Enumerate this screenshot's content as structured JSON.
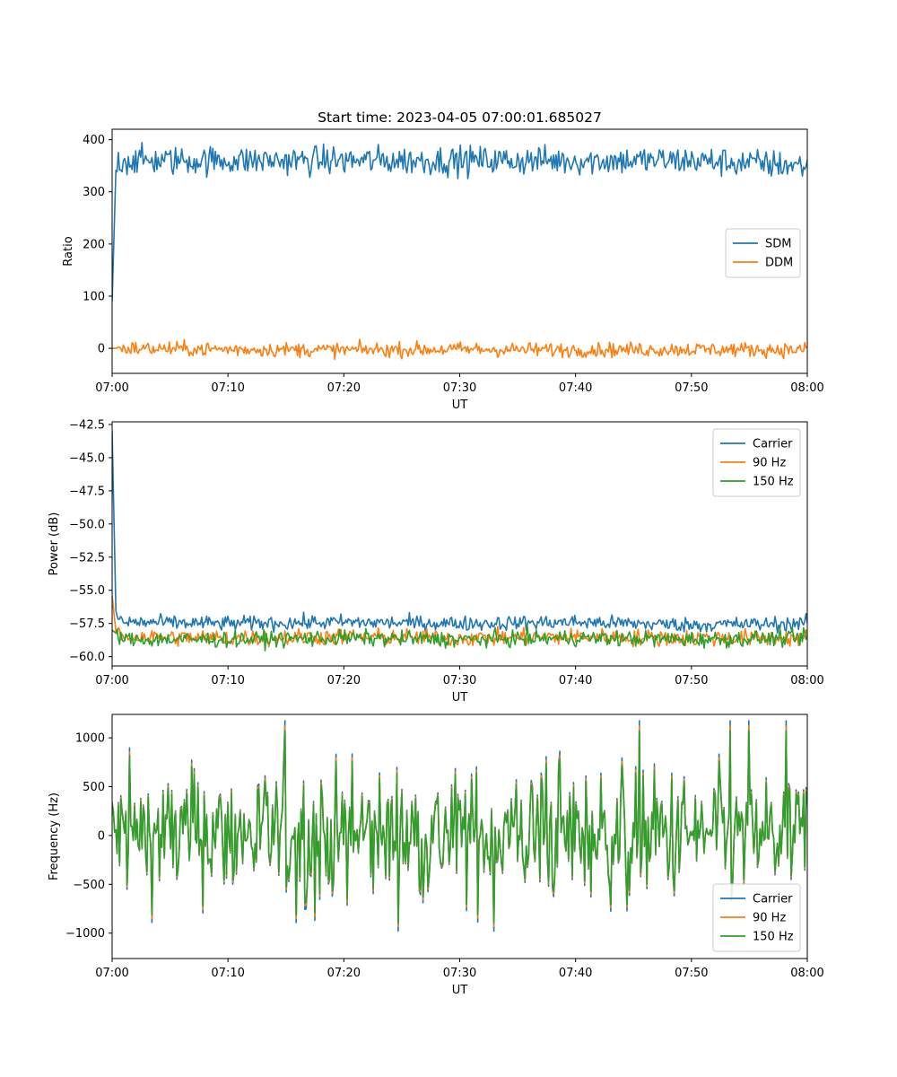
{
  "figure_title": "Start time: 2023-04-05 07:00:01.685027",
  "colors": {
    "blue": "#1f77b4",
    "orange": "#ff7f0e",
    "green": "#2ca02c"
  },
  "chart_data": [
    {
      "type": "line",
      "title": "Start time: 2023-04-05 07:00:01.685027",
      "xlabel": "UT",
      "ylabel": "Ratio",
      "xlim": [
        "07:00",
        "08:00"
      ],
      "ylim": [
        -48,
        420
      ],
      "xticks": [
        "07:00",
        "07:10",
        "07:20",
        "07:30",
        "07:40",
        "07:50",
        "08:00"
      ],
      "yticks": [
        0,
        100,
        200,
        300,
        400
      ],
      "ytick_labels": [
        "0",
        "100",
        "200",
        "300",
        "400"
      ],
      "grid": false,
      "legend": "center-right",
      "series": [
        {
          "name": "SDM",
          "color": "#1f77b4",
          "profile": "ratio_sdm",
          "x": [
            "07:00",
            "07:00:20",
            "07:00:40",
            "07:10",
            "07:20",
            "07:30",
            "07:40",
            "07:50",
            "08:00"
          ],
          "y": [
            90,
            350,
            360,
            360,
            360,
            360,
            360,
            360,
            350
          ]
        },
        {
          "name": "DDM",
          "color": "#ff7f0e",
          "profile": "ratio_ddm",
          "x": [
            "07:00",
            "07:10",
            "07:20",
            "07:30",
            "07:40",
            "07:50",
            "08:00"
          ],
          "y": [
            0,
            -2,
            -3,
            -2,
            -3,
            -2,
            -3
          ]
        }
      ]
    },
    {
      "type": "line",
      "title": "",
      "xlabel": "UT",
      "ylabel": "Power (dB)",
      "xlim": [
        "07:00",
        "08:00"
      ],
      "ylim": [
        -60.7,
        -42.3
      ],
      "xticks": [
        "07:00",
        "07:10",
        "07:20",
        "07:30",
        "07:40",
        "07:50",
        "08:00"
      ],
      "yticks": [
        -60.0,
        -57.5,
        -55.0,
        -52.5,
        -50.0,
        -47.5,
        -45.0,
        -42.5
      ],
      "ytick_labels": [
        "−60.0",
        "−57.5",
        "−55.0",
        "−52.5",
        "−50.0",
        "−47.5",
        "−45.0",
        "−42.5"
      ],
      "grid": false,
      "legend": "top-right",
      "series": [
        {
          "name": "Carrier",
          "color": "#1f77b4",
          "profile": "power_carrier",
          "x": [
            "07:00",
            "07:00:20",
            "07:01",
            "07:10",
            "07:20",
            "07:30",
            "07:40",
            "07:50",
            "08:00"
          ],
          "y": [
            -43.0,
            -57.0,
            -57.4,
            -57.5,
            -57.4,
            -57.5,
            -57.4,
            -57.6,
            -57.5
          ]
        },
        {
          "name": "90 Hz",
          "color": "#ff7f0e",
          "profile": "power_90",
          "x": [
            "07:00",
            "07:00:20",
            "07:01",
            "07:10",
            "07:20",
            "07:30",
            "07:40",
            "07:50",
            "08:00"
          ],
          "y": [
            -55.4,
            -58.2,
            -58.5,
            -58.6,
            -58.5,
            -58.6,
            -58.5,
            -58.6,
            -58.6
          ]
        },
        {
          "name": "150 Hz",
          "color": "#2ca02c",
          "profile": "power_150",
          "x": [
            "07:00",
            "07:01",
            "07:10",
            "07:20",
            "07:30",
            "07:40",
            "07:50",
            "08:00"
          ],
          "y": [
            -58.0,
            -58.7,
            -58.7,
            -58.6,
            -58.7,
            -58.6,
            -58.7,
            -58.6
          ]
        }
      ]
    },
    {
      "type": "line",
      "title": "",
      "xlabel": "UT",
      "ylabel": "Frequency (Hz)",
      "xlim": [
        "07:00",
        "08:00"
      ],
      "ylim": [
        -1260,
        1240
      ],
      "xticks": [
        "07:00",
        "07:10",
        "07:20",
        "07:30",
        "07:40",
        "07:50",
        "08:00"
      ],
      "yticks": [
        -1000,
        -500,
        0,
        500,
        1000
      ],
      "ytick_labels": [
        "−1000",
        "−500",
        "0",
        "500",
        "1000"
      ],
      "grid": false,
      "legend": "bottom-right",
      "series": [
        {
          "name": "Carrier",
          "color": "#1f77b4",
          "profile": "freq_carrier",
          "x": [
            "07:00",
            "07:10",
            "07:20",
            "07:30",
            "07:40",
            "07:50",
            "08:00"
          ],
          "y": [
            0,
            0,
            0,
            0,
            0,
            0,
            0
          ]
        },
        {
          "name": "90 Hz",
          "color": "#ff7f0e",
          "profile": "freq_90",
          "x": [
            "07:00",
            "07:10",
            "07:20",
            "07:30",
            "07:40",
            "07:50",
            "08:00"
          ],
          "y": [
            0,
            0,
            0,
            0,
            0,
            0,
            0
          ]
        },
        {
          "name": "150 Hz",
          "color": "#2ca02c",
          "profile": "freq_150",
          "x": [
            "07:00",
            "07:10",
            "07:20",
            "07:30",
            "07:40",
            "07:50",
            "08:00"
          ],
          "y": [
            0,
            0,
            0,
            0,
            0,
            0,
            0
          ]
        }
      ]
    }
  ]
}
